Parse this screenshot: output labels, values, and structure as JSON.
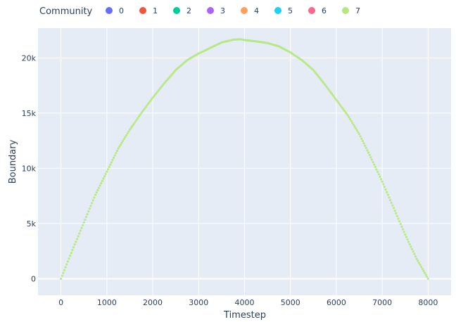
{
  "chart_data": {
    "type": "scatter",
    "xlabel": "Timestep",
    "ylabel": "Boundary",
    "xlim": [
      -500,
      8500
    ],
    "ylim": [
      -1500,
      22700
    ],
    "x_ticks": [
      0,
      1000,
      2000,
      3000,
      4000,
      5000,
      6000,
      7000,
      8000
    ],
    "x_tick_labels": [
      "0",
      "1000",
      "2000",
      "3000",
      "4000",
      "5000",
      "6000",
      "7000",
      "8000"
    ],
    "y_ticks": [
      0,
      5000,
      10000,
      15000,
      20000
    ],
    "y_tick_labels": [
      "0",
      "5k",
      "10k",
      "15k",
      "20k"
    ],
    "grid": true,
    "legend": {
      "title": "Community",
      "placement": "top",
      "entries": [
        {
          "name": "0",
          "color": "#636efa"
        },
        {
          "name": "1",
          "color": "#EF553B"
        },
        {
          "name": "2",
          "color": "#00cc96"
        },
        {
          "name": "3",
          "color": "#ab63fa"
        },
        {
          "name": "4",
          "color": "#FFA15A"
        },
        {
          "name": "5",
          "color": "#19d3f3"
        },
        {
          "name": "6",
          "color": "#FF6692"
        },
        {
          "name": "7",
          "color": "#B6E880"
        }
      ]
    },
    "series": [
      {
        "name": "7",
        "color": "#B6E880",
        "x": [
          0,
          250,
          500,
          750,
          1000,
          1250,
          1500,
          1750,
          2000,
          2250,
          2500,
          2750,
          3000,
          3250,
          3500,
          3750,
          3900,
          4000,
          4250,
          4500,
          4750,
          5000,
          5250,
          5500,
          5750,
          6000,
          6250,
          6500,
          6750,
          7000,
          7250,
          7500,
          7750,
          8000
        ],
        "y": [
          0,
          2600,
          5100,
          7600,
          9700,
          11800,
          13500,
          15000,
          16400,
          17700,
          18900,
          19800,
          20400,
          20900,
          21400,
          21650,
          21700,
          21620,
          21500,
          21350,
          21050,
          20500,
          19800,
          18900,
          17600,
          16200,
          14800,
          13100,
          11000,
          8800,
          6400,
          4000,
          1800,
          0
        ]
      }
    ]
  }
}
